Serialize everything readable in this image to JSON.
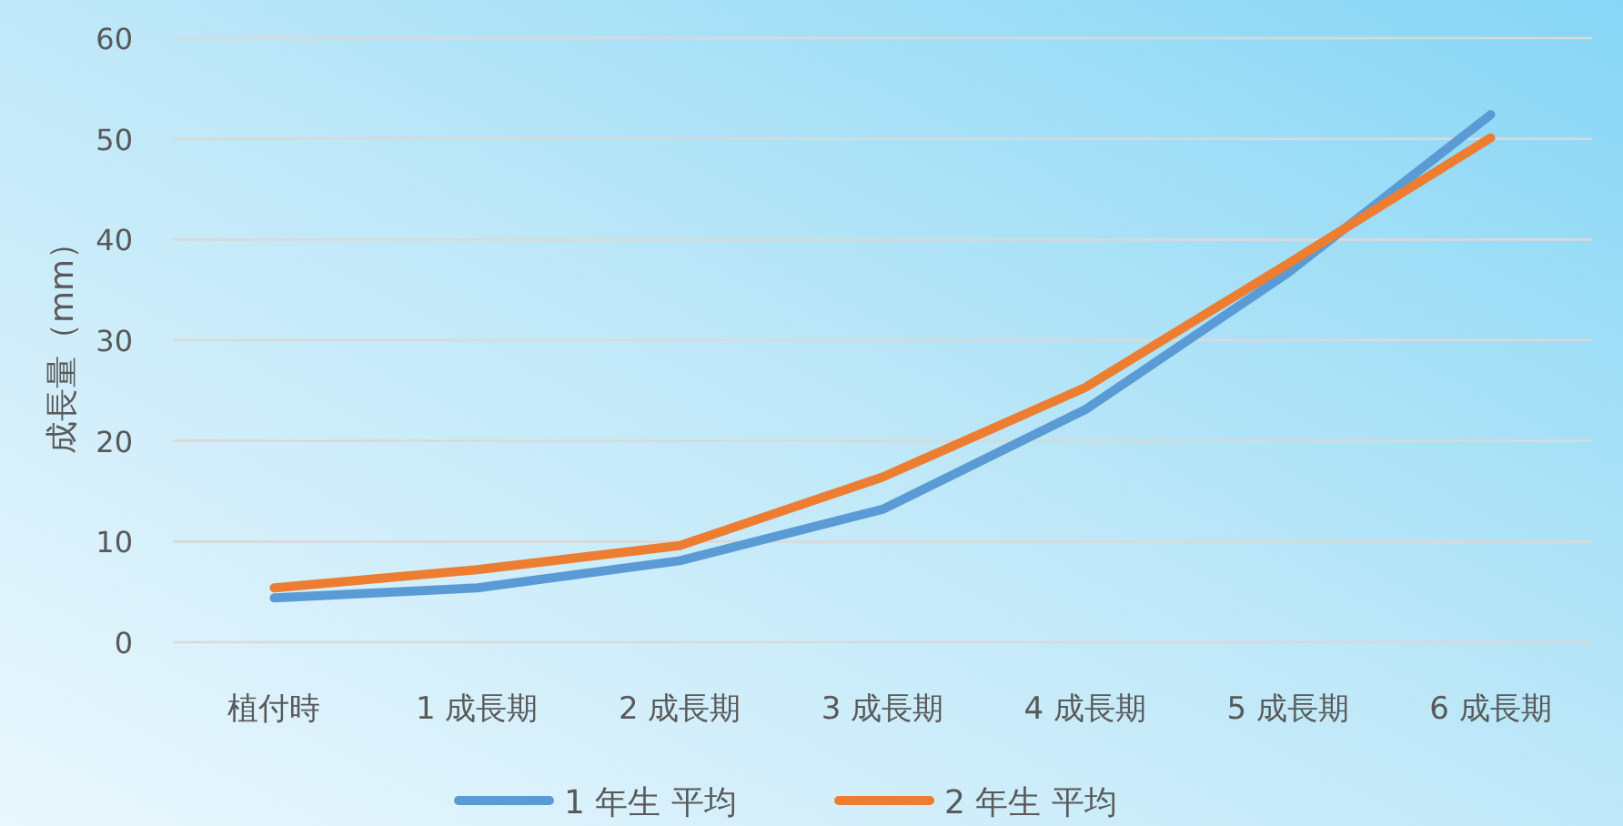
{
  "chart_data": {
    "type": "line",
    "ylabel": "成長量（mm）",
    "categories": [
      "植付時",
      "1 成長期",
      "2 成長期",
      "3 成長期",
      "4 成長期",
      "5 成長期",
      "6 成長期"
    ],
    "series": [
      {
        "name": "1 年生 平均",
        "color": "#5b9bd5",
        "values": [
          4.4,
          5.4,
          8.1,
          13.2,
          23.1,
          36.7,
          52.4
        ]
      },
      {
        "name": "2 年生 平均",
        "color": "#ed7d31",
        "values": [
          5.4,
          7.2,
          9.6,
          16.4,
          25.3,
          37.6,
          50.1
        ]
      }
    ],
    "ylim": [
      0,
      60
    ],
    "yticks": [
      0,
      10,
      20,
      30,
      40,
      50,
      60
    ],
    "grid": "y",
    "legend": "bottom",
    "marker": "none",
    "line_style": "solid"
  }
}
